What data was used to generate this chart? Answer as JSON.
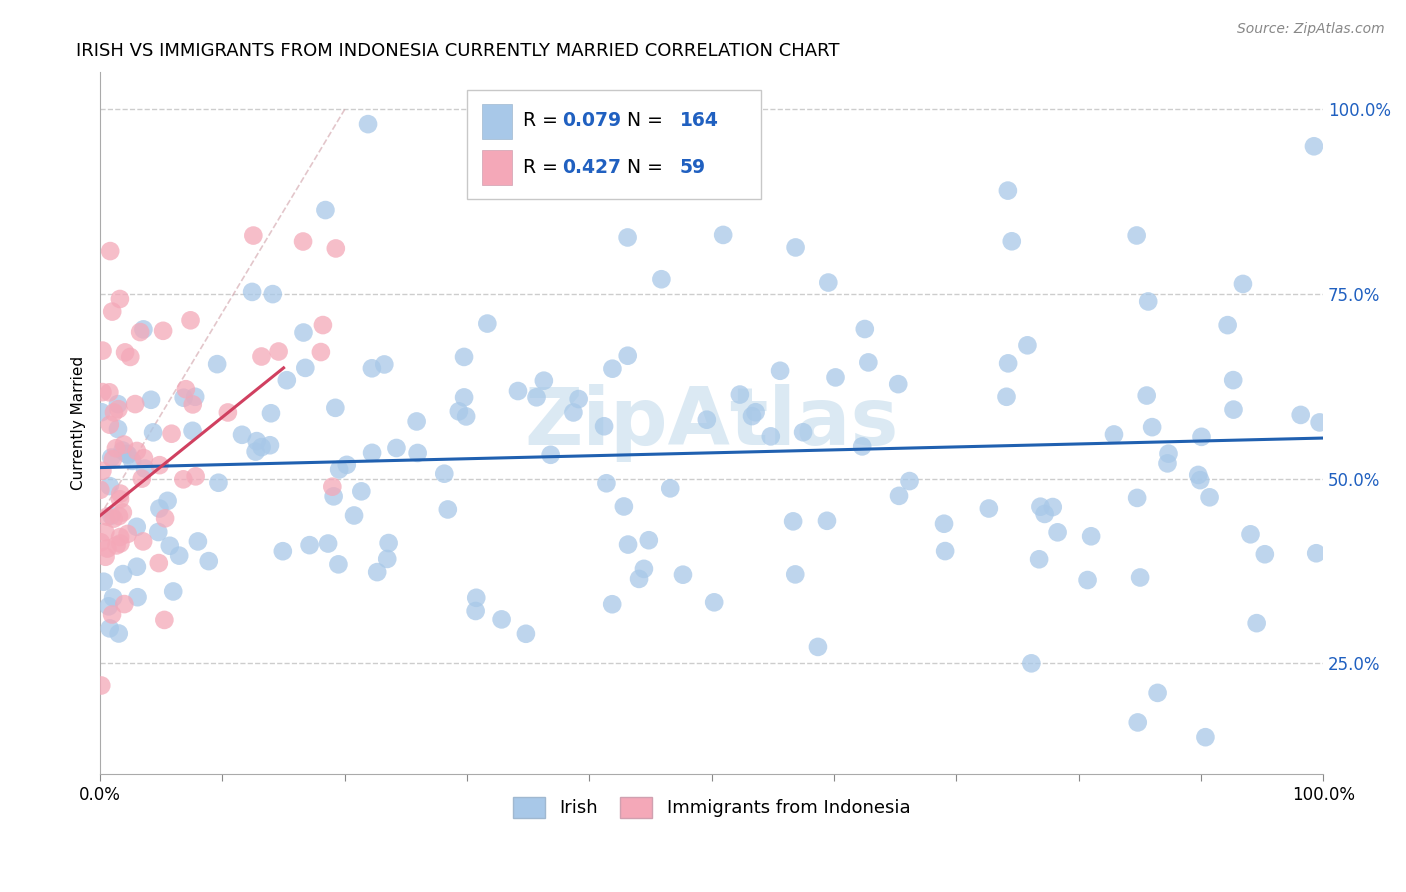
{
  "title": "IRISH VS IMMIGRANTS FROM INDONESIA CURRENTLY MARRIED CORRELATION CHART",
  "source": "Source: ZipAtlas.com",
  "ylabel": "Currently Married",
  "xlim": [
    0,
    100
  ],
  "ylim": [
    10,
    105
  ],
  "yticks": [
    25,
    50,
    75,
    100
  ],
  "ytick_labels": [
    "25.0%",
    "50.0%",
    "75.0%",
    "100.0%"
  ],
  "xticks": [
    0,
    10,
    20,
    30,
    40,
    50,
    60,
    70,
    80,
    90,
    100
  ],
  "irish_R": 0.079,
  "irish_N": 164,
  "indonesia_R": 0.427,
  "indonesia_N": 59,
  "irish_color": "#a8c8e8",
  "irish_line_color": "#2060b0",
  "indonesia_color": "#f4a8b8",
  "indonesia_line_color": "#d04060",
  "background_color": "#ffffff",
  "legend_R_N_color": "#2060c0",
  "title_fontsize": 13,
  "source_fontsize": 10,
  "axis_label_fontsize": 11,
  "tick_label_color": "#2060c0",
  "irish_seed": 42,
  "indonesia_seed": 99,
  "irish_line_start_x": 0,
  "irish_line_end_x": 100,
  "irish_line_start_y": 51.5,
  "irish_line_end_y": 55.5,
  "indonesia_line_start_x": 0,
  "indonesia_line_end_x": 15,
  "indonesia_line_start_y": 45,
  "indonesia_line_end_y": 65,
  "watermark_text": "ZipAtlas",
  "watermark_color": "#b8d4e8",
  "watermark_alpha": 0.5,
  "legend_entries": [
    "Irish",
    "Immigrants from Indonesia"
  ]
}
